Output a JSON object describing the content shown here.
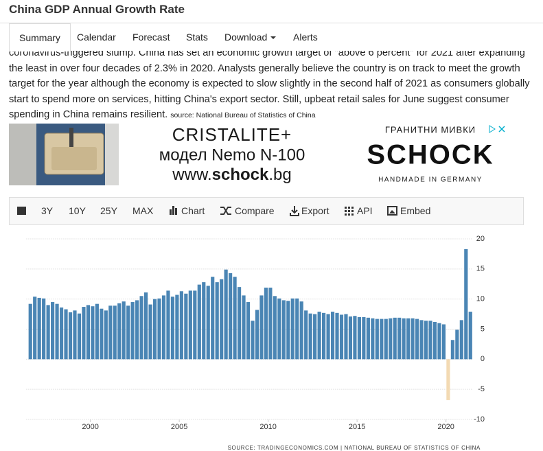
{
  "header": {
    "title": "China GDP Annual Growth Rate"
  },
  "nav": [
    "Summary",
    "Calendar",
    "Forecast",
    "Stats",
    "Download",
    "Alerts"
  ],
  "article": {
    "text": "coronavirus-triggered slump. China has set an economic growth target of \"above 6 percent\" for 2021 after expanding the least in over four decades of 2.3% in 2020. Analysts generally believe the country is on track to meet the growth target for the year although the economy is expected to slow slightly in the second half of 2021 as consumers globally start to spend more on services, hitting China's export sector. Still, upbeat retail sales for June suggest consumer spending in China remains resilient.",
    "source": "source: National Bureau of Statistics of China"
  },
  "ad": {
    "line1": "CRISTALITE+",
    "line2": "модел Nemo N-100",
    "url_pre": "www.",
    "url_bold": "schock",
    "url_post": ".bg",
    "kicker": "ГРАНИТНИ МИВКИ",
    "brand": "SCHOCK",
    "tagline": "HANDMADE IN GERMANY"
  },
  "toolbar": [
    "3Y",
    "10Y",
    "25Y",
    "MAX",
    "Chart",
    "Compare",
    "Export",
    "API",
    "Embed"
  ],
  "chart_data": {
    "type": "bar",
    "x": [
      1996.5,
      1996.75,
      1997,
      1997.25,
      1997.5,
      1997.75,
      1998,
      1998.25,
      1998.5,
      1998.75,
      1999,
      1999.25,
      1999.5,
      1999.75,
      2000,
      2000.25,
      2000.5,
      2000.75,
      2001,
      2001.25,
      2001.5,
      2001.75,
      2002,
      2002.25,
      2002.5,
      2002.75,
      2003,
      2003.25,
      2003.5,
      2003.75,
      2004,
      2004.25,
      2004.5,
      2004.75,
      2005,
      2005.25,
      2005.5,
      2005.75,
      2006,
      2006.25,
      2006.5,
      2006.75,
      2007,
      2007.25,
      2007.5,
      2007.75,
      2008,
      2008.25,
      2008.5,
      2008.75,
      2009,
      2009.25,
      2009.5,
      2009.75,
      2010,
      2010.25,
      2010.5,
      2010.75,
      2011,
      2011.25,
      2011.5,
      2011.75,
      2012,
      2012.25,
      2012.5,
      2012.75,
      2013,
      2013.25,
      2013.5,
      2013.75,
      2014,
      2014.25,
      2014.5,
      2014.75,
      2015,
      2015.25,
      2015.5,
      2015.75,
      2016,
      2016.25,
      2016.5,
      2016.75,
      2017,
      2017.25,
      2017.5,
      2017.75,
      2018,
      2018.25,
      2018.5,
      2018.75,
      2019,
      2019.25,
      2019.5,
      2019.75,
      2020,
      2020.25,
      2020.5,
      2020.75,
      2021,
      2021.25
    ],
    "values": [
      9.2,
      10.4,
      10.2,
      10.1,
      9.0,
      9.5,
      9.2,
      8.6,
      8.3,
      7.8,
      8.1,
      7.6,
      8.7,
      9.0,
      8.8,
      9.2,
      8.4,
      8.1,
      8.9,
      8.9,
      9.3,
      9.6,
      8.9,
      9.5,
      9.8,
      10.5,
      11.1,
      9.1,
      10.0,
      10.1,
      10.6,
      11.4,
      10.4,
      10.7,
      11.3,
      10.9,
      11.4,
      11.4,
      12.4,
      12.8,
      12.2,
      13.7,
      12.8,
      13.3,
      14.9,
      14.3,
      13.7,
      12.0,
      10.6,
      9.5,
      6.4,
      8.2,
      10.6,
      11.9,
      11.9,
      10.5,
      10.1,
      9.8,
      9.7,
      10.1,
      10.1,
      9.6,
      8.1,
      7.6,
      7.5,
      7.9,
      7.7,
      7.5,
      7.9,
      7.7,
      7.4,
      7.5,
      7.1,
      7.2,
      7.0,
      7.0,
      6.9,
      6.8,
      6.7,
      6.7,
      6.7,
      6.8,
      6.9,
      6.9,
      6.8,
      6.8,
      6.8,
      6.7,
      6.5,
      6.4,
      6.4,
      6.2,
      6.0,
      5.8,
      -6.8,
      3.2,
      4.9,
      6.5,
      18.3,
      7.9
    ],
    "color": "#4a85b4",
    "negative_color": "#f3dab3",
    "xlim": [
      1996.4,
      2021.7
    ],
    "xticks": [
      2000,
      2005,
      2010,
      2015,
      2020
    ],
    "ylim": [
      -10,
      20.5
    ],
    "yticks": [
      -10,
      -5,
      0,
      5,
      10,
      15,
      20
    ],
    "grid": true,
    "source": "SOURCE: TRADINGECONOMICS.COM | NATIONAL BUREAU OF STATISTICS OF CHINA"
  }
}
